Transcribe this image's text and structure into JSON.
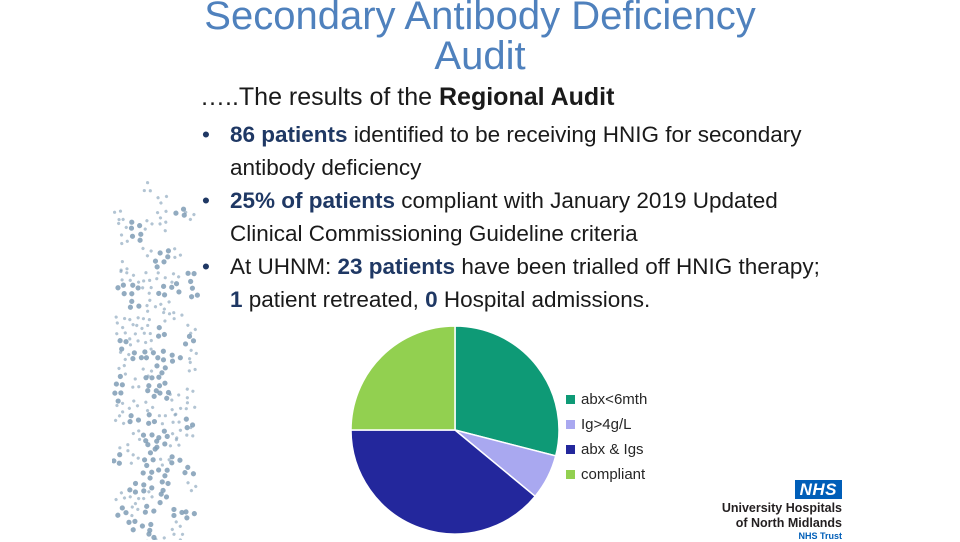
{
  "title": {
    "line1": "Secondary Antibody Deficiency",
    "line2": "Audit"
  },
  "intro": {
    "prefix": "…..The results of the ",
    "bold": "Regional Audit"
  },
  "bullets": [
    {
      "hl1": "86 patients",
      "text1": " identified to be receiving HNIG for secondary antibody deficiency"
    },
    {
      "hl1": "25% of patients",
      "text1": " compliant with January 2019 Updated Clinical Commissioning Guideline criteria"
    },
    {
      "t0": "At UHNM: ",
      "hl1": "23 patients",
      "text1": " have been trialled off HNIG therapy; ",
      "hl2": "1",
      "text2": " patient retreated, ",
      "hl3": "0",
      "text3": " Hospital admissions."
    }
  ],
  "chart_data": {
    "type": "pie",
    "title": "",
    "legend_position": "right",
    "slices": [
      {
        "label": "abx<6mth",
        "value": 29,
        "color": "#0e9a76"
      },
      {
        "label": "Ig>4g/L",
        "value": 7,
        "color": "#a9a8f0"
      },
      {
        "label": "abx & Igs",
        "value": 39,
        "color": "#23279c"
      },
      {
        "label": "compliant",
        "value": 25,
        "color": "#92d050"
      }
    ]
  },
  "logo": {
    "badge": "NHS",
    "line1": "University Hospitals",
    "line2": "of North Midlands",
    "line3": "NHS Trust"
  },
  "colors": {
    "title": "#4f81bd",
    "highlight": "#1f3864",
    "nhs_blue": "#005eb8"
  }
}
